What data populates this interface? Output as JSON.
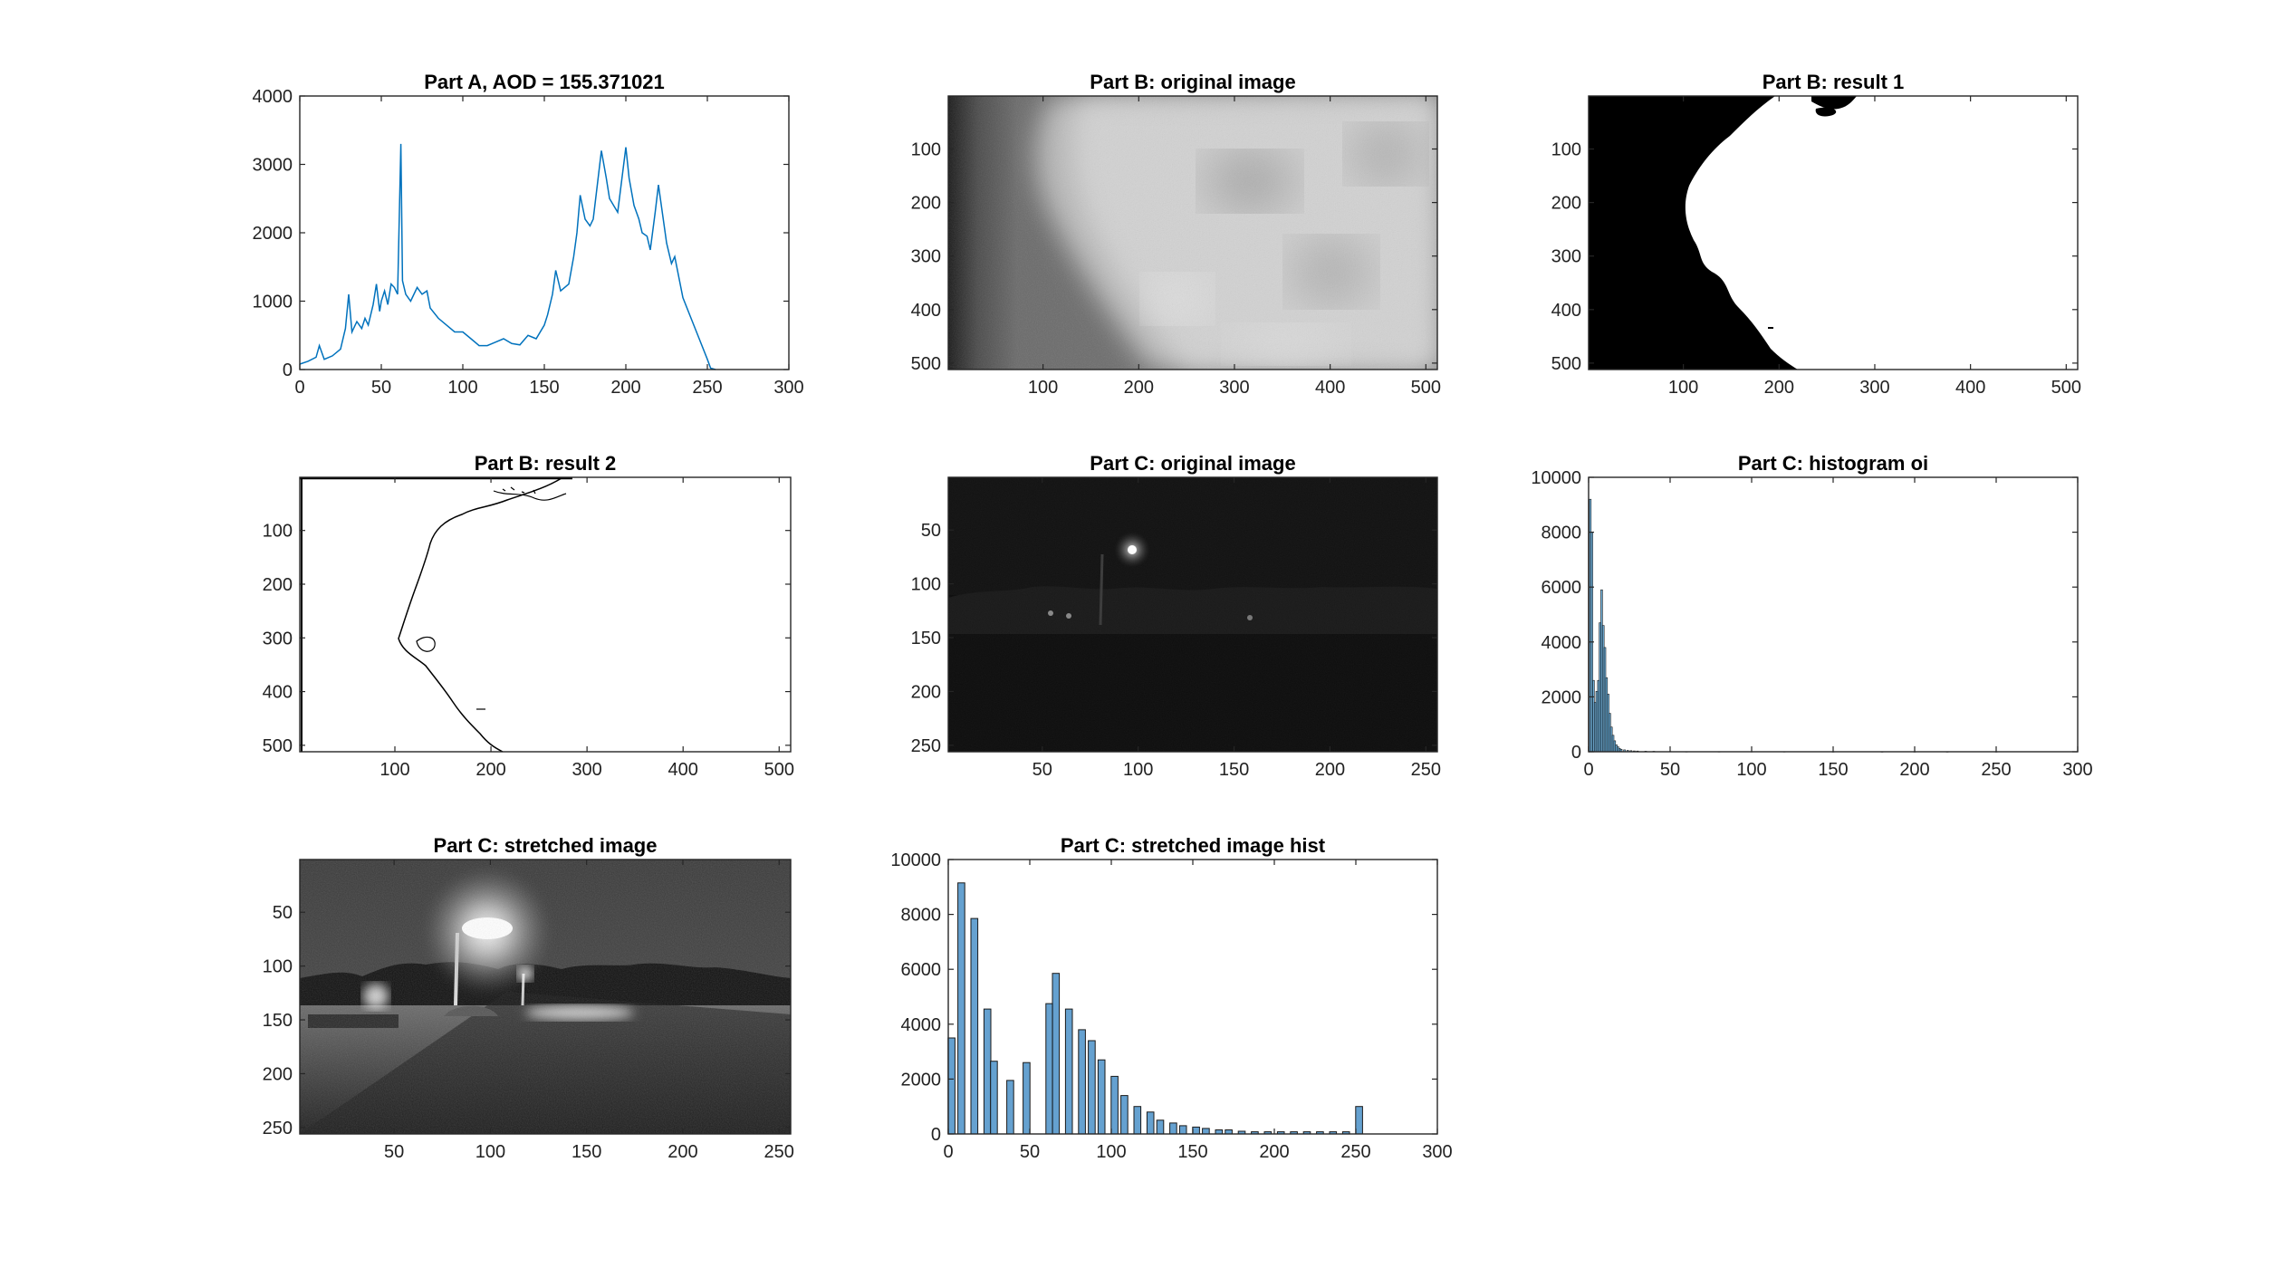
{
  "figure": {
    "background": "#ffffff",
    "accent_line": "#0072BD",
    "accent_bar": "#4a90c8"
  },
  "chart_data": [
    {
      "id": "a",
      "type": "line",
      "title": "Part A, AOD = 155.371021",
      "xlim": [
        0,
        300
      ],
      "ylim": [
        0,
        4000
      ],
      "xticks": [
        0,
        50,
        100,
        150,
        200,
        250,
        300
      ],
      "yticks": [
        0,
        1000,
        2000,
        3000,
        4000
      ],
      "color": "#0072BD",
      "x": [
        0,
        5,
        10,
        12,
        15,
        20,
        25,
        28,
        30,
        32,
        35,
        38,
        40,
        42,
        45,
        47,
        49,
        50,
        52,
        54,
        56,
        58,
        60,
        62,
        63,
        65,
        68,
        72,
        75,
        78,
        80,
        85,
        90,
        95,
        100,
        105,
        110,
        115,
        120,
        125,
        130,
        135,
        140,
        145,
        150,
        152,
        155,
        157,
        160,
        165,
        168,
        170,
        172,
        175,
        178,
        180,
        183,
        185,
        188,
        190,
        195,
        200,
        202,
        205,
        208,
        210,
        213,
        215,
        218,
        220,
        225,
        228,
        230,
        235,
        240,
        245,
        250,
        252,
        255
      ],
      "y": [
        80,
        120,
        180,
        350,
        150,
        200,
        300,
        600,
        1100,
        550,
        700,
        600,
        750,
        650,
        950,
        1250,
        850,
        1000,
        1150,
        950,
        1250,
        1200,
        1100,
        3300,
        1300,
        1100,
        1000,
        1200,
        1100,
        1150,
        900,
        750,
        650,
        550,
        550,
        450,
        350,
        350,
        400,
        450,
        380,
        360,
        500,
        450,
        650,
        800,
        1100,
        1450,
        1150,
        1250,
        1650,
        2000,
        2550,
        2200,
        2100,
        2200,
        2800,
        3200,
        2800,
        2500,
        2300,
        3250,
        2800,
        2400,
        2200,
        2000,
        1950,
        1750,
        2300,
        2700,
        1850,
        1550,
        1650,
        1050,
        750,
        450,
        150,
        20,
        0
      ]
    },
    {
      "id": "b1",
      "type": "heatmap",
      "title": "Part B: original image",
      "xlim": [
        1,
        512
      ],
      "ylim": [
        1,
        512
      ],
      "xticks": [
        100,
        200,
        300,
        400,
        500
      ],
      "yticks": [
        100,
        200,
        300,
        400,
        500
      ],
      "colormap": "gray"
    },
    {
      "id": "b2",
      "type": "heatmap",
      "title": "Part B: result 1",
      "xlim": [
        1,
        512
      ],
      "ylim": [
        1,
        512
      ],
      "xticks": [
        100,
        200,
        300,
        400,
        500
      ],
      "yticks": [
        100,
        200,
        300,
        400,
        500
      ],
      "colormap": "binary"
    },
    {
      "id": "b3",
      "type": "heatmap",
      "title": "Part B: result 2",
      "xlim": [
        1,
        512
      ],
      "ylim": [
        1,
        512
      ],
      "xticks": [
        100,
        200,
        300,
        400,
        500
      ],
      "yticks": [
        100,
        200,
        300,
        400,
        500
      ],
      "colormap": "binary-edges"
    },
    {
      "id": "c1",
      "type": "heatmap",
      "title": "Part C: original image",
      "xlim": [
        1,
        256
      ],
      "ylim": [
        1,
        256
      ],
      "xticks": [
        50,
        100,
        150,
        200,
        250
      ],
      "yticks": [
        50,
        100,
        150,
        200,
        250
      ],
      "colormap": "gray"
    },
    {
      "id": "c2",
      "type": "bar",
      "title": "Part C: histogram oi",
      "xlim": [
        0,
        300
      ],
      "ylim": [
        0,
        10000
      ],
      "xticks": [
        0,
        50,
        100,
        150,
        200,
        250,
        300
      ],
      "yticks": [
        0,
        2000,
        4000,
        6000,
        8000,
        10000
      ],
      "color": "#0072BD",
      "x": [
        1,
        2,
        3,
        4,
        5,
        6,
        7,
        8,
        9,
        10,
        11,
        12,
        13,
        14,
        15,
        16,
        17,
        18,
        19,
        20,
        22,
        24,
        26,
        28,
        30,
        35,
        40,
        50,
        60,
        80,
        100,
        120,
        150,
        180,
        200,
        220,
        250
      ],
      "values": [
        9200,
        8000,
        2600,
        1800,
        2200,
        2600,
        4700,
        5900,
        4600,
        3800,
        2700,
        2100,
        1400,
        900,
        600,
        400,
        250,
        180,
        120,
        90,
        70,
        50,
        40,
        30,
        25,
        20,
        15,
        10,
        8,
        6,
        5,
        5,
        4,
        4,
        3,
        3,
        3
      ]
    },
    {
      "id": "c3",
      "type": "heatmap",
      "title": "Part C: stretched image",
      "xlim": [
        1,
        256
      ],
      "ylim": [
        1,
        256
      ],
      "xticks": [
        50,
        100,
        150,
        200,
        250
      ],
      "yticks": [
        50,
        100,
        150,
        200,
        250
      ],
      "colormap": "gray"
    },
    {
      "id": "c4",
      "type": "bar",
      "title": "Part C: stretched image hist",
      "xlim": [
        0,
        300
      ],
      "ylim": [
        0,
        10000
      ],
      "xticks": [
        0,
        50,
        100,
        150,
        200,
        250,
        300
      ],
      "yticks": [
        0,
        2000,
        4000,
        6000,
        8000,
        10000
      ],
      "color": "#4a90c8",
      "x": [
        2,
        8,
        16,
        24,
        28,
        38,
        48,
        62,
        66,
        74,
        82,
        88,
        94,
        102,
        108,
        116,
        124,
        130,
        138,
        144,
        152,
        158,
        166,
        172,
        180,
        188,
        196,
        204,
        212,
        220,
        228,
        236,
        244,
        252
      ],
      "values": [
        3500,
        9150,
        7850,
        4550,
        2650,
        1950,
        2600,
        4750,
        5850,
        4550,
        3800,
        3400,
        2700,
        2100,
        1400,
        1000,
        800,
        500,
        400,
        300,
        250,
        200,
        150,
        150,
        100,
        80,
        80,
        80,
        80,
        80,
        80,
        80,
        80,
        1000
      ]
    }
  ]
}
